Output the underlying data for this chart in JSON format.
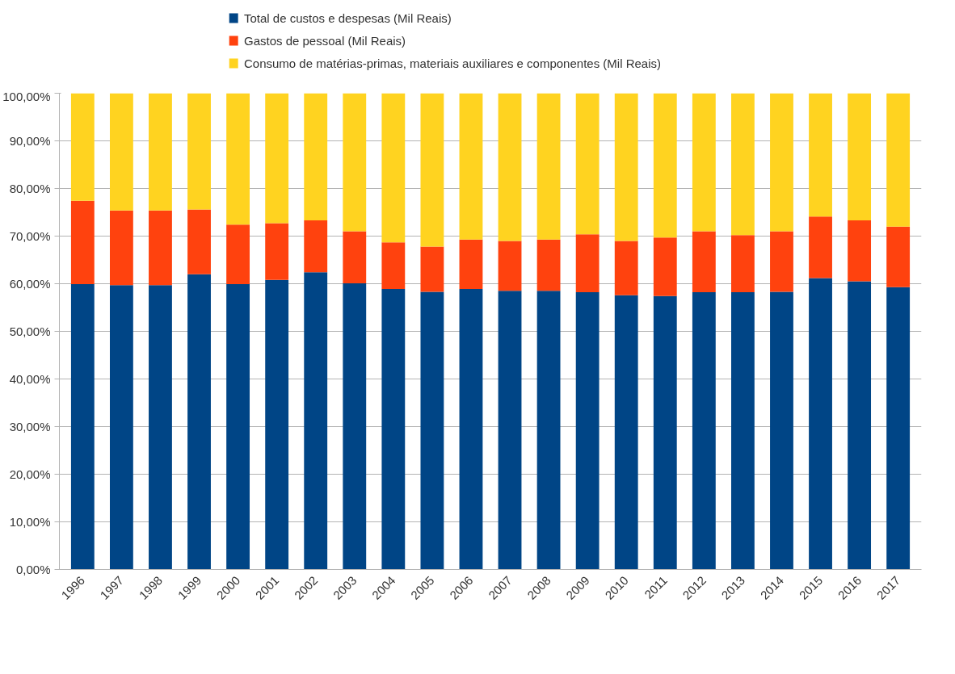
{
  "chart_data": {
    "type": "bar",
    "stacked": true,
    "categories": [
      "1996",
      "1997",
      "1998",
      "1999",
      "2000",
      "2001",
      "2002",
      "2003",
      "2004",
      "2005",
      "2006",
      "2007",
      "2008",
      "2009",
      "2010",
      "2011",
      "2012",
      "2013",
      "2014",
      "2015",
      "2016",
      "2017"
    ],
    "series": [
      {
        "name": "Total de custos e despesas (Mil Reais)",
        "color": "#004586",
        "values": [
          59.9,
          59.7,
          59.7,
          62.0,
          59.9,
          60.8,
          62.4,
          60.1,
          58.9,
          58.3,
          58.9,
          58.5,
          58.5,
          58.2,
          57.6,
          57.4,
          58.2,
          58.2,
          58.3,
          61.2,
          60.5,
          59.3
        ]
      },
      {
        "name": "Gastos de pessoal (Mil Reais)",
        "color": "#ff420e",
        "values": [
          17.5,
          15.7,
          15.7,
          13.6,
          12.5,
          11.9,
          10.9,
          10.9,
          9.8,
          9.5,
          10.4,
          10.5,
          10.8,
          12.2,
          11.4,
          12.3,
          12.8,
          12.0,
          12.7,
          12.9,
          12.8,
          12.7
        ]
      },
      {
        "name": "Consumo de matérias-primas, materiais auxiliares e componentes (Mil Reais)",
        "color": "#ffd320",
        "values": [
          22.6,
          24.6,
          24.6,
          24.4,
          27.6,
          27.3,
          26.7,
          29.0,
          31.3,
          32.2,
          30.7,
          31.0,
          30.7,
          29.6,
          31.0,
          30.3,
          29.0,
          29.8,
          29.0,
          25.9,
          26.7,
          28.0
        ]
      }
    ],
    "ylim": [
      0,
      100
    ],
    "yticks": [
      {
        "value": 0,
        "label": "0,00%"
      },
      {
        "value": 10,
        "label": "10,00%"
      },
      {
        "value": 20,
        "label": "20,00%"
      },
      {
        "value": 30,
        "label": "30,00%"
      },
      {
        "value": 40,
        "label": "40,00%"
      },
      {
        "value": 50,
        "label": "50,00%"
      },
      {
        "value": 60,
        "label": "60,00%"
      },
      {
        "value": 70,
        "label": "70,00%"
      },
      {
        "value": 80,
        "label": "80,00%"
      },
      {
        "value": 90,
        "label": "90,00%"
      },
      {
        "value": 100,
        "label": "100,00%"
      }
    ],
    "grid": "y",
    "legend": "top"
  }
}
